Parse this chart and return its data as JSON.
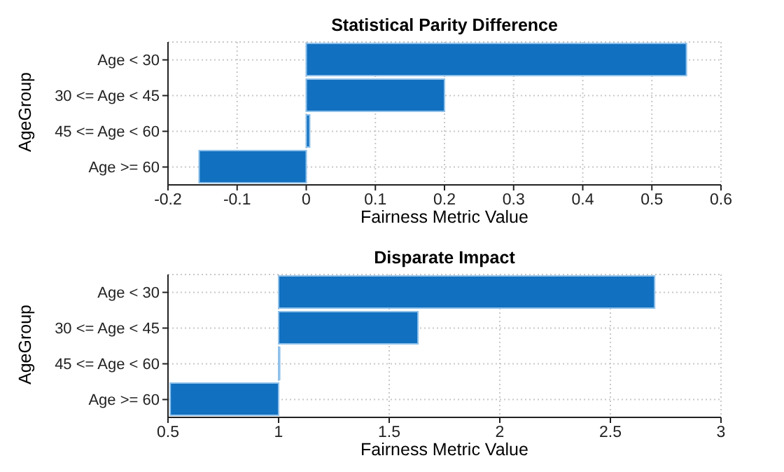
{
  "chart_data": [
    {
      "type": "bar",
      "orientation": "horizontal",
      "title": "Statistical Parity Difference",
      "xlabel": "Fairness Metric Value",
      "ylabel": "AgeGroup",
      "categories": [
        "Age < 30",
        "30 <= Age < 45",
        "45 <= Age < 60",
        "Age >= 60"
      ],
      "values": [
        0.55,
        0.2,
        0.005,
        -0.155
      ],
      "color": "#1170c0",
      "xlim": [
        -0.2,
        0.6
      ],
      "xticks": [
        -0.2,
        -0.1,
        0,
        0.1,
        0.2,
        0.3,
        0.4,
        0.5,
        0.6
      ],
      "grid": true
    },
    {
      "type": "bar",
      "orientation": "horizontal",
      "title": "Disparate Impact",
      "xlabel": "Fairness Metric Value",
      "ylabel": "AgeGroup",
      "categories": [
        "Age < 30",
        "30 <= Age < 45",
        "45 <= Age < 60",
        "Age >= 60"
      ],
      "base": [
        1,
        1,
        1,
        1
      ],
      "values": [
        1.7,
        0.63,
        0.005,
        -0.49
      ],
      "color": "#1170c0",
      "xlim": [
        0.5,
        3
      ],
      "xticks": [
        0.5,
        1,
        1.5,
        2,
        2.5,
        3
      ],
      "grid": true
    }
  ]
}
